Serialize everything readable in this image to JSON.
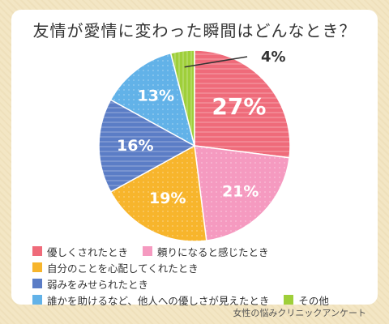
{
  "page": {
    "title": "友情が愛情に変わった瞬間はどんなとき？",
    "source": "女性の悩みクリニックアンケート"
  },
  "chart_data": {
    "type": "pie",
    "title": "友情が愛情に変わった瞬間はどんなとき？",
    "slices": [
      {
        "label": "優しくされたとき",
        "value": 27,
        "value_label": "27%",
        "color": "#ef6b7a"
      },
      {
        "label": "頼りになると感じたとき",
        "value": 21,
        "value_label": "21%",
        "color": "#f59ac0"
      },
      {
        "label": "自分のことを心配してくれたとき",
        "value": 19,
        "value_label": "19%",
        "color": "#f7b52c"
      },
      {
        "label": "弱みをみせられたとき",
        "value": 16,
        "value_label": "16%",
        "color": "#5b7dc6"
      },
      {
        "label": "誰かを助けるなど、他人への優しさが見えたとき",
        "value": 13,
        "value_label": "13%",
        "color": "#62b2e8"
      },
      {
        "label": "その他",
        "value": 4,
        "value_label": "4%",
        "color": "#9fcf3a"
      }
    ],
    "legend_position": "bottom"
  }
}
